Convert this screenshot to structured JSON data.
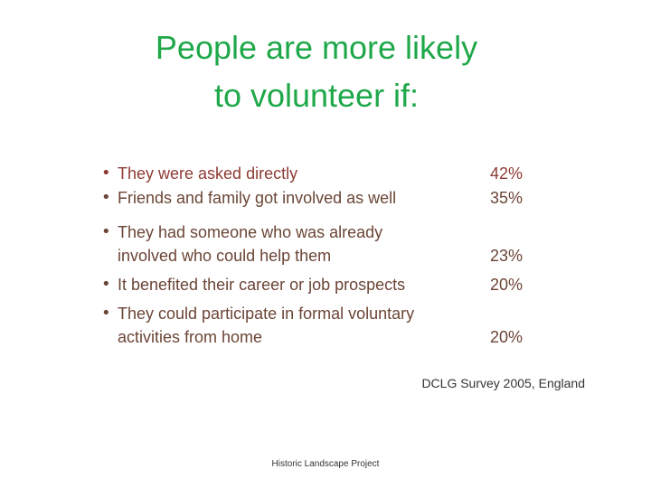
{
  "title": {
    "lines": [
      "People are more likely",
      "to volunteer if:"
    ]
  },
  "items": [
    {
      "lines": [
        "They were asked directly"
      ],
      "percent": "42%"
    },
    {
      "lines": [
        "Friends and family got involved  as well"
      ],
      "percent": "35%"
    },
    {
      "lines": [
        "They had someone who was already",
        "involved who could help them"
      ],
      "percent": "23%"
    },
    {
      "lines": [
        "It benefited their career or job  prospects"
      ],
      "percent": "20%"
    },
    {
      "lines": [
        "They could participate in formal voluntary",
        "activities from home"
      ],
      "percent": "20%"
    }
  ],
  "source": "DCLG Survey 2005, England",
  "footer": "Historic Landscape Project"
}
